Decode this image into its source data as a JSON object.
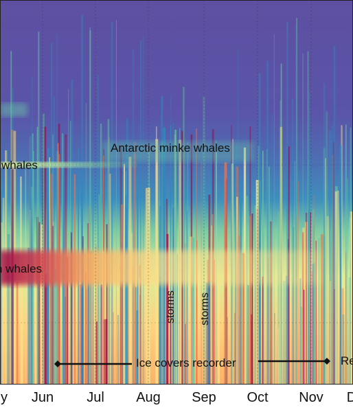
{
  "chart_data": {
    "type": "heatmap",
    "title": "",
    "xlabel": "",
    "ylabel": "",
    "x_tick_labels": [
      "y",
      "Jun",
      "Jul",
      "Aug",
      "Sep",
      "Oct",
      "Nov",
      "D"
    ],
    "colormap": "spectral (blue-purple low, yellow mid, red high)",
    "grid": true,
    "annotations": {
      "minke": "Antarctic minke whales",
      "left_upper": "whales",
      "left_lower": "n whales",
      "storm1": "storms",
      "storm2": "storms",
      "ice": "Ice covers recorder",
      "right_edge": "Re"
    }
  },
  "colors": {
    "background_low": "#5e4fa2",
    "mid_blue": "#3288bd",
    "mid_green": "#66c2a5",
    "mid_yellow": "#fee08b",
    "high_orange": "#f46d43",
    "high_red": "#9e0142"
  }
}
